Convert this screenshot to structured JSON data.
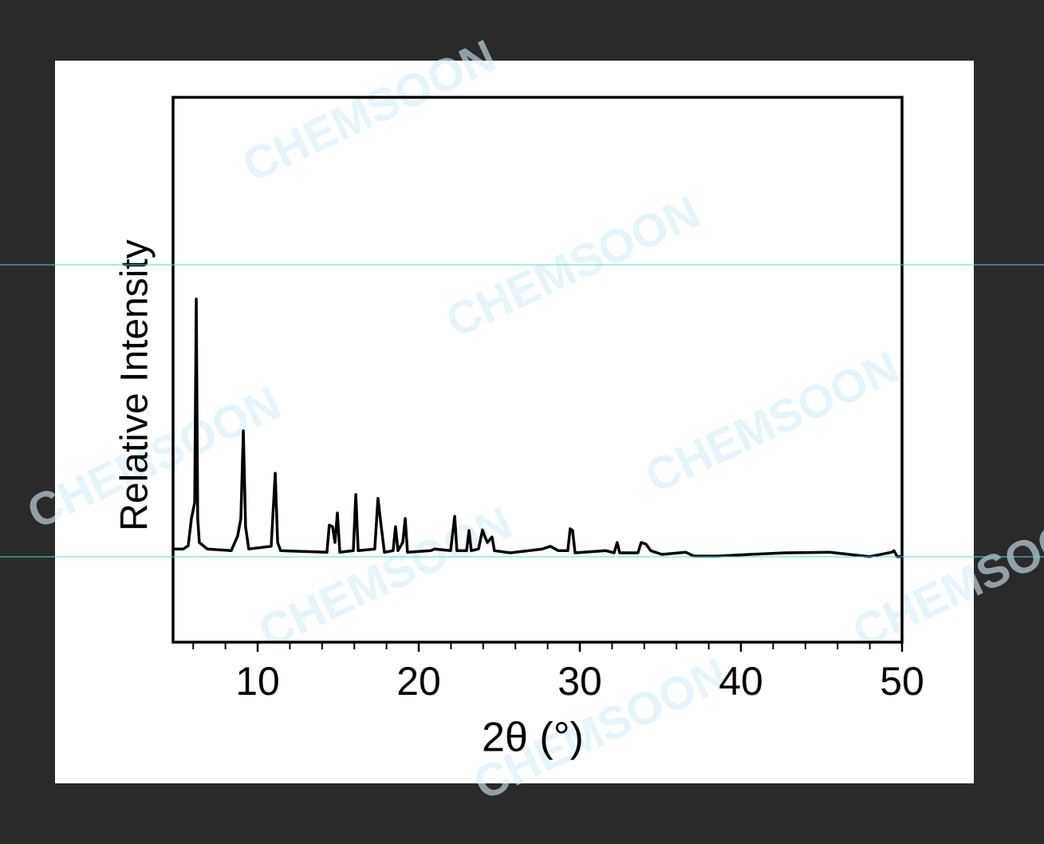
{
  "chart_data": {
    "type": "line",
    "x_label": "2θ (°)",
    "y_label": "Relative Intensity",
    "watermark": "CHEMSOON",
    "color": "#000000",
    "x": [
      4.75,
      5.39,
      5.69,
      5.89,
      6.09,
      6.19,
      6.28,
      6.38,
      6.88,
      8.36,
      8.76,
      8.96,
      9.11,
      9.25,
      9.45,
      10.84,
      11.09,
      11.24,
      11.43,
      14.3,
      14.45,
      14.65,
      14.8,
      14.95,
      15.1,
      15.94,
      16.09,
      16.24,
      17.27,
      17.47,
      17.67,
      17.87,
      18.41,
      18.56,
      18.71,
      19.01,
      19.16,
      19.3,
      20.74,
      20.99,
      21.98,
      22.23,
      22.37,
      22.97,
      23.12,
      23.26,
      23.71,
      23.96,
      24.11,
      24.26,
      24.55,
      24.7,
      25.69,
      27.67,
      28.17,
      28.66,
      29.25,
      29.4,
      29.55,
      29.7,
      31.63,
      32.13,
      32.32,
      32.47,
      33.61,
      33.81,
      34.11,
      34.4,
      35.1,
      36.58,
      37.08,
      38.56,
      40.54,
      42.77,
      45.49,
      47.97,
      49.35,
      49.5,
      49.7,
      50.0
    ],
    "values": [
      17.1,
      17.1,
      17.7,
      22.7,
      25.6,
      63.0,
      22.7,
      18.3,
      17.1,
      16.8,
      19.5,
      22.7,
      38.8,
      21.2,
      17.1,
      17.6,
      31.0,
      18.3,
      16.8,
      16.5,
      21.5,
      21.2,
      18.3,
      23.7,
      16.5,
      16.8,
      27.1,
      16.8,
      17.1,
      26.4,
      21.2,
      16.5,
      16.8,
      21.2,
      16.8,
      18.3,
      22.7,
      16.5,
      16.8,
      17.1,
      16.8,
      23.1,
      16.8,
      16.8,
      20.5,
      16.8,
      17.1,
      20.6,
      19.3,
      18.3,
      19.3,
      16.8,
      16.4,
      17.1,
      17.6,
      16.8,
      16.8,
      20.8,
      20.5,
      16.4,
      16.8,
      16.4,
      18.3,
      16.4,
      16.4,
      18.3,
      18.0,
      16.8,
      16.1,
      16.5,
      15.8,
      15.8,
      16.1,
      16.4,
      16.5,
      15.7,
      16.5,
      16.8,
      15.7,
      15.7
    ],
    "xlim": [
      4.75,
      50
    ],
    "ylim": [
      0,
      100
    ],
    "xticks": [
      10,
      20,
      30,
      40,
      50
    ],
    "xminor_ticks": [
      6,
      8,
      12,
      14,
      16,
      18,
      22,
      24,
      26,
      28,
      32,
      34,
      36,
      38,
      42,
      44,
      46,
      48
    ]
  }
}
